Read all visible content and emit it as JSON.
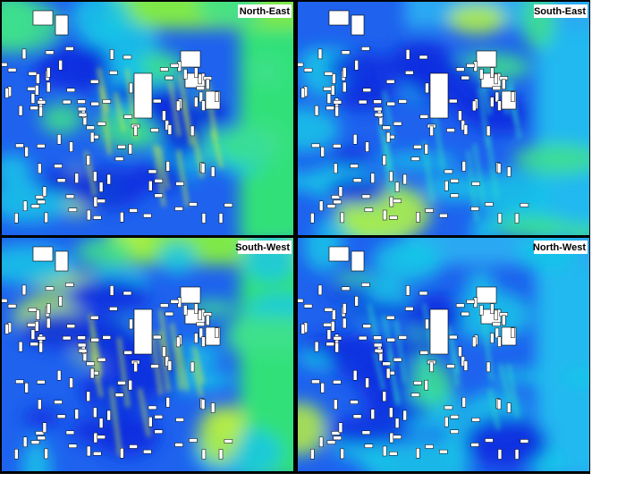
{
  "panels": [
    {
      "label": "North-East"
    },
    {
      "label": "South-East"
    },
    {
      "label": "South-West"
    },
    {
      "label": "North-West"
    }
  ]
}
